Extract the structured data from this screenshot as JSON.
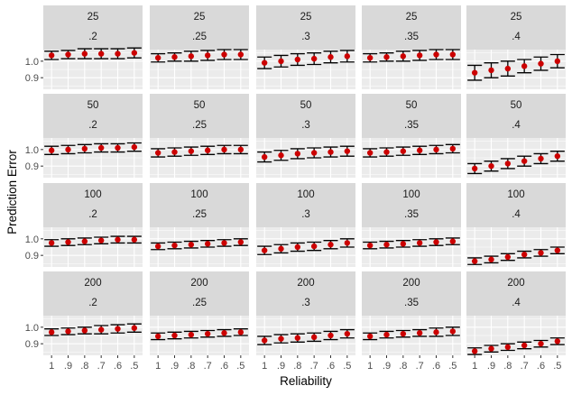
{
  "chart_data": {
    "type": "scatter",
    "subtype": "point-errorbar facet grid",
    "xlabel": "Reliability",
    "ylabel": "Prediction Error",
    "x_categories": [
      "1",
      ".9",
      ".8",
      ".7",
      ".6",
      ".5"
    ],
    "y_ticks": [
      0.9,
      1.0
    ],
    "y_tick_labels": [
      "0.9",
      "1.0"
    ],
    "ylim": [
      0.83,
      1.07
    ],
    "grid": true,
    "point_color": "#cc0000",
    "errorbar_color": "#000000",
    "panel_background": "#ebebeb",
    "strip_background": "#d9d9d9",
    "row_labels": [
      "25",
      "50",
      "100",
      "200"
    ],
    "col_labels": [
      ".2",
      ".25",
      ".3",
      ".35",
      ".4"
    ],
    "panels": [
      {
        "row": "25",
        "col": ".2",
        "y": [
          1.035,
          1.04,
          1.045,
          1.045,
          1.045,
          1.05
        ],
        "err": [
          0.025,
          0.025,
          0.03,
          0.03,
          0.03,
          0.03
        ]
      },
      {
        "row": "25",
        "col": ".25",
        "y": [
          1.02,
          1.025,
          1.03,
          1.035,
          1.04,
          1.04
        ],
        "err": [
          0.025,
          0.025,
          0.03,
          0.03,
          0.03,
          0.03
        ]
      },
      {
        "row": "25",
        "col": ".3",
        "y": [
          0.99,
          1.0,
          1.01,
          1.015,
          1.025,
          1.03
        ],
        "err": [
          0.035,
          0.035,
          0.035,
          0.035,
          0.035,
          0.035
        ]
      },
      {
        "row": "25",
        "col": ".35",
        "y": [
          1.02,
          1.025,
          1.03,
          1.035,
          1.04,
          1.04
        ],
        "err": [
          0.025,
          0.025,
          0.03,
          0.03,
          0.03,
          0.03
        ]
      },
      {
        "row": "25",
        "col": ".4",
        "y": [
          0.93,
          0.945,
          0.955,
          0.97,
          0.985,
          1.0
        ],
        "err": [
          0.045,
          0.045,
          0.045,
          0.04,
          0.04,
          0.04
        ]
      },
      {
        "row": "50",
        "col": ".2",
        "y": [
          0.995,
          1.0,
          1.005,
          1.01,
          1.01,
          1.015
        ],
        "err": [
          0.025,
          0.025,
          0.025,
          0.025,
          0.025,
          0.025
        ]
      },
      {
        "row": "50",
        "col": ".25",
        "y": [
          0.98,
          0.985,
          0.99,
          0.995,
          1.0,
          1.0
        ],
        "err": [
          0.025,
          0.025,
          0.025,
          0.025,
          0.025,
          0.025
        ]
      },
      {
        "row": "50",
        "col": ".3",
        "y": [
          0.955,
          0.965,
          0.975,
          0.98,
          0.985,
          0.99
        ],
        "err": [
          0.03,
          0.03,
          0.03,
          0.03,
          0.03,
          0.03
        ]
      },
      {
        "row": "50",
        "col": ".35",
        "y": [
          0.98,
          0.985,
          0.99,
          0.995,
          1.0,
          1.005
        ],
        "err": [
          0.025,
          0.025,
          0.025,
          0.025,
          0.025,
          0.025
        ]
      },
      {
        "row": "50",
        "col": ".4",
        "y": [
          0.885,
          0.9,
          0.915,
          0.93,
          0.945,
          0.96
        ],
        "err": [
          0.03,
          0.03,
          0.03,
          0.03,
          0.03,
          0.03
        ]
      },
      {
        "row": "100",
        "col": ".2",
        "y": [
          0.975,
          0.98,
          0.985,
          0.99,
          0.995,
          0.995
        ],
        "err": [
          0.02,
          0.02,
          0.02,
          0.02,
          0.02,
          0.02
        ]
      },
      {
        "row": "100",
        "col": ".25",
        "y": [
          0.955,
          0.96,
          0.965,
          0.97,
          0.975,
          0.98
        ],
        "err": [
          0.02,
          0.02,
          0.02,
          0.02,
          0.02,
          0.02
        ]
      },
      {
        "row": "100",
        "col": ".3",
        "y": [
          0.93,
          0.94,
          0.95,
          0.955,
          0.965,
          0.975
        ],
        "err": [
          0.025,
          0.025,
          0.025,
          0.025,
          0.025,
          0.025
        ]
      },
      {
        "row": "100",
        "col": ".35",
        "y": [
          0.96,
          0.965,
          0.97,
          0.975,
          0.98,
          0.985
        ],
        "err": [
          0.02,
          0.02,
          0.02,
          0.02,
          0.02,
          0.02
        ]
      },
      {
        "row": "100",
        "col": ".4",
        "y": [
          0.865,
          0.875,
          0.89,
          0.905,
          0.915,
          0.93
        ],
        "err": [
          0.02,
          0.02,
          0.02,
          0.02,
          0.02,
          0.02
        ]
      },
      {
        "row": "200",
        "col": ".2",
        "y": [
          0.97,
          0.975,
          0.98,
          0.985,
          0.99,
          0.995
        ],
        "err": [
          0.02,
          0.02,
          0.02,
          0.025,
          0.025,
          0.025
        ]
      },
      {
        "row": "200",
        "col": ".25",
        "y": [
          0.945,
          0.95,
          0.955,
          0.96,
          0.965,
          0.97
        ],
        "err": [
          0.02,
          0.02,
          0.02,
          0.02,
          0.02,
          0.02
        ]
      },
      {
        "row": "200",
        "col": ".3",
        "y": [
          0.92,
          0.93,
          0.935,
          0.94,
          0.95,
          0.96
        ],
        "err": [
          0.025,
          0.025,
          0.025,
          0.025,
          0.025,
          0.025
        ]
      },
      {
        "row": "200",
        "col": ".35",
        "y": [
          0.945,
          0.955,
          0.96,
          0.965,
          0.97,
          0.975
        ],
        "err": [
          0.02,
          0.02,
          0.02,
          0.02,
          0.025,
          0.025
        ]
      },
      {
        "row": "200",
        "col": ".4",
        "y": [
          0.855,
          0.87,
          0.88,
          0.89,
          0.9,
          0.915
        ],
        "err": [
          0.02,
          0.02,
          0.02,
          0.02,
          0.02,
          0.02
        ]
      }
    ]
  }
}
